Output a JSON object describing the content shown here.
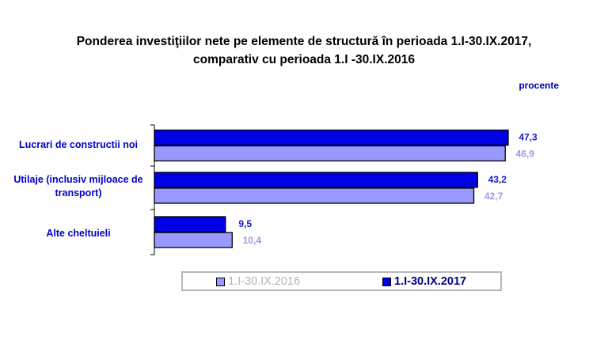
{
  "title_line1": "Ponderea investiţiilor nete pe elemente de structură în perioada 1.I-30.IX.2017,",
  "title_line2": "comparativ cu perioada 1.I -30.IX.2016",
  "unit_label": "procente",
  "colors": {
    "s2017": "#0000e6",
    "s2016": "#9999ff",
    "label2017": "#1a1acc",
    "label2016": "#9a9ae6"
  },
  "chart_data": {
    "type": "bar",
    "orientation": "horizontal",
    "title": "Ponderea investiţiilor nete pe elemente de structură în perioada 1.I-30.IX.2017, comparativ cu perioada 1.I -30.IX.2016",
    "categories": [
      "Lucrari de constructii noi",
      "Utilaje (inclusiv mijloace de transport)",
      "Alte cheltuieli"
    ],
    "category_lines": [
      [
        "Lucrari de constructii noi"
      ],
      [
        "Utilaje (inclusiv mijloace de",
        "transport)"
      ],
      [
        "Alte cheltuieli"
      ]
    ],
    "series": [
      {
        "name": "1.I-30.IX.2017",
        "values": [
          47.3,
          43.2,
          9.5
        ],
        "labels": [
          "47,3",
          "43,2",
          "9,5"
        ]
      },
      {
        "name": "1.I-30.IX.2016",
        "values": [
          46.9,
          42.7,
          10.4
        ],
        "labels": [
          "46,9",
          "42,7",
          "10,4"
        ]
      }
    ],
    "xlim": [
      0,
      50
    ],
    "grid": false,
    "legend_position": "bottom"
  }
}
